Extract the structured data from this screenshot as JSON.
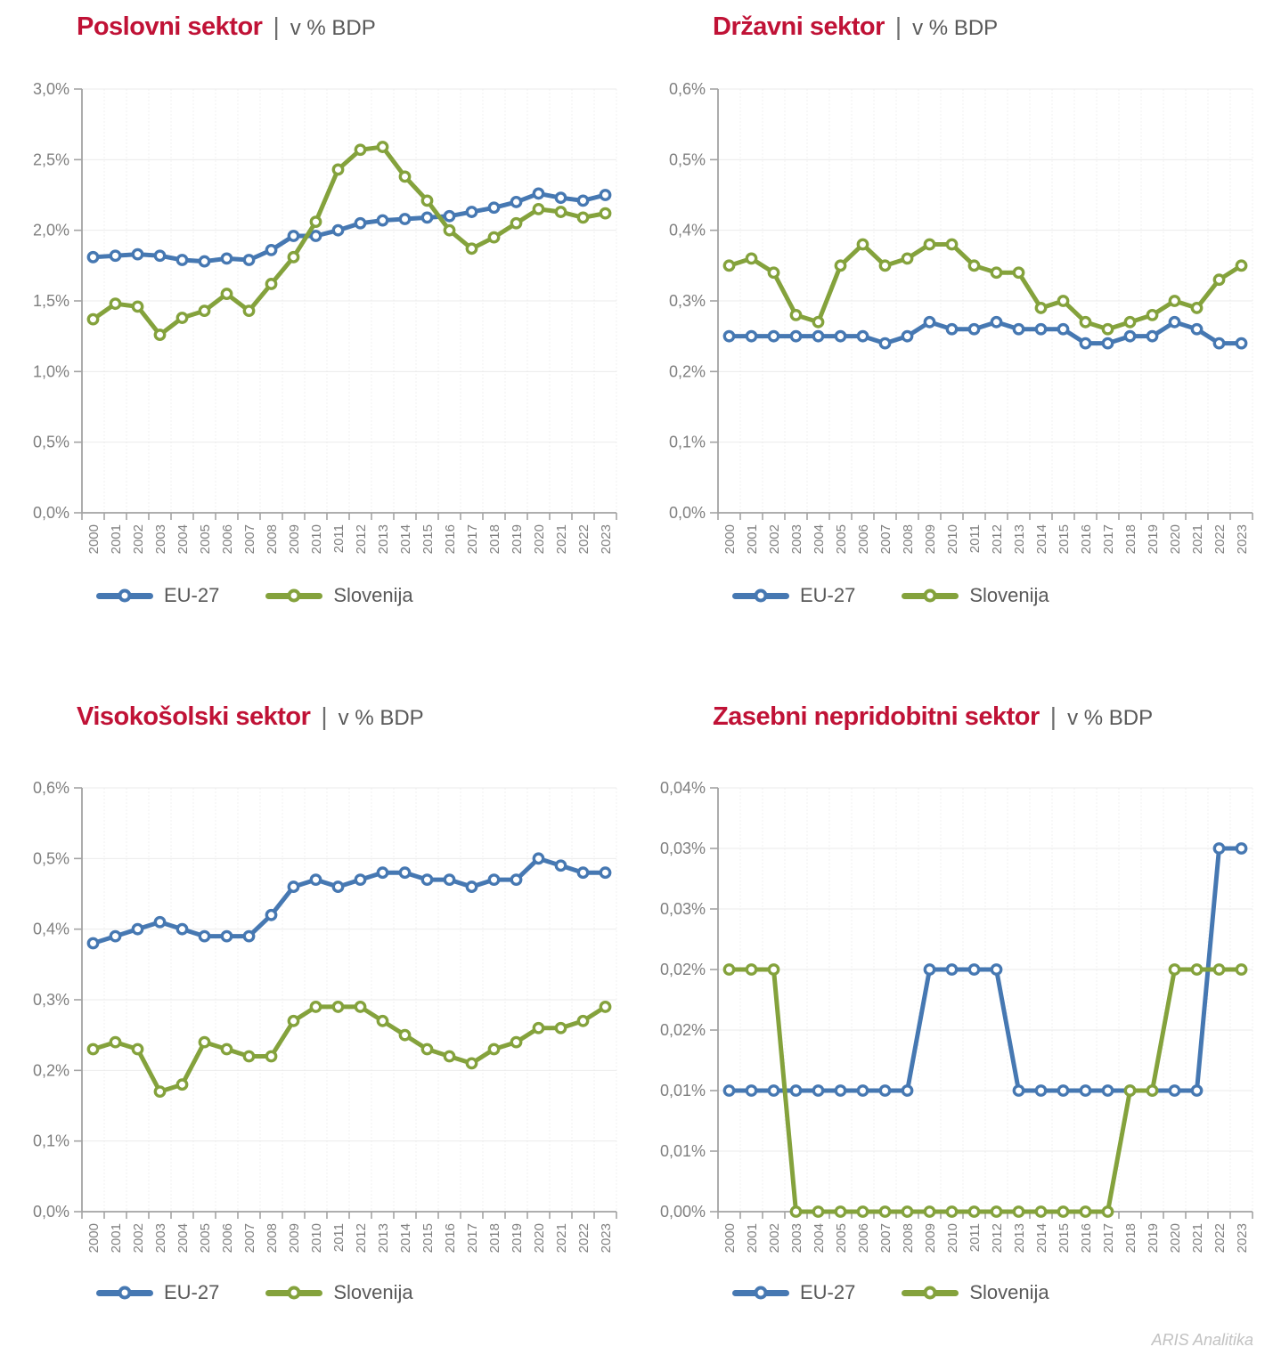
{
  "page": {
    "footer": "ARIS Analitika"
  },
  "colors": {
    "eu27": "#4678B2",
    "slovenija": "#84A23C",
    "title_red": "#C01236",
    "subtitle_gray": "#595959",
    "axis_label_gray": "#7F7F7F"
  },
  "chart_data": [
    {
      "type": "line",
      "title": "Poslovni sektor",
      "separator": "|",
      "subtitle": "v % BDP",
      "x": [
        2000,
        2001,
        2002,
        2003,
        2004,
        2005,
        2006,
        2007,
        2008,
        2009,
        2010,
        2011,
        2012,
        2013,
        2014,
        2015,
        2016,
        2017,
        2018,
        2019,
        2020,
        2021,
        2022,
        2023
      ],
      "series": [
        {
          "name": "EU-27",
          "color": "#4678B2",
          "values": [
            1.81,
            1.82,
            1.83,
            1.82,
            1.79,
            1.78,
            1.8,
            1.79,
            1.86,
            1.96,
            1.96,
            2.0,
            2.05,
            2.07,
            2.08,
            2.09,
            2.1,
            2.13,
            2.16,
            2.2,
            2.26,
            2.23,
            2.21,
            2.25
          ]
        },
        {
          "name": "Slovenija",
          "color": "#84A23C",
          "values": [
            1.37,
            1.48,
            1.46,
            1.26,
            1.38,
            1.43,
            1.55,
            1.43,
            1.62,
            1.81,
            2.06,
            2.43,
            2.57,
            2.59,
            2.38,
            2.21,
            2.0,
            1.87,
            1.95,
            2.05,
            2.15,
            2.13,
            2.09,
            2.12
          ]
        }
      ],
      "ylim": [
        0,
        3.0
      ],
      "ytick_labels": [
        "0,0%",
        "0,5%",
        "1,0%",
        "1,5%",
        "2,0%",
        "2,5%",
        "3,0%"
      ],
      "grid": true,
      "legend_position": "bottom"
    },
    {
      "type": "line",
      "title": "Državni sektor",
      "separator": "|",
      "subtitle": "v % BDP",
      "x": [
        2000,
        2001,
        2002,
        2003,
        2004,
        2005,
        2006,
        2007,
        2008,
        2009,
        2010,
        2011,
        2012,
        2013,
        2014,
        2015,
        2016,
        2017,
        2018,
        2019,
        2020,
        2021,
        2022,
        2023
      ],
      "series": [
        {
          "name": "EU-27",
          "color": "#4678B2",
          "values": [
            0.25,
            0.25,
            0.25,
            0.25,
            0.25,
            0.25,
            0.25,
            0.24,
            0.25,
            0.27,
            0.26,
            0.26,
            0.27,
            0.26,
            0.26,
            0.26,
            0.24,
            0.24,
            0.25,
            0.25,
            0.27,
            0.26,
            0.24,
            0.24
          ]
        },
        {
          "name": "Slovenija",
          "color": "#84A23C",
          "values": [
            0.35,
            0.36,
            0.34,
            0.28,
            0.27,
            0.35,
            0.38,
            0.35,
            0.36,
            0.38,
            0.38,
            0.35,
            0.34,
            0.34,
            0.29,
            0.3,
            0.27,
            0.26,
            0.27,
            0.28,
            0.3,
            0.29,
            0.33,
            0.35
          ]
        }
      ],
      "ylim": [
        0,
        0.6
      ],
      "ytick_labels": [
        "0,0%",
        "0,1%",
        "0,2%",
        "0,3%",
        "0,4%",
        "0,5%",
        "0,6%"
      ],
      "grid": true,
      "legend_position": "bottom"
    },
    {
      "type": "line",
      "title": "Visokošolski sektor",
      "separator": "|",
      "subtitle": "v % BDP",
      "x": [
        2000,
        2001,
        2002,
        2003,
        2004,
        2005,
        2006,
        2007,
        2008,
        2009,
        2010,
        2011,
        2012,
        2013,
        2014,
        2015,
        2016,
        2017,
        2018,
        2019,
        2020,
        2021,
        2022,
        2023
      ],
      "series": [
        {
          "name": "EU-27",
          "color": "#4678B2",
          "values": [
            0.38,
            0.39,
            0.4,
            0.41,
            0.4,
            0.39,
            0.39,
            0.39,
            0.42,
            0.46,
            0.47,
            0.46,
            0.47,
            0.48,
            0.48,
            0.47,
            0.47,
            0.46,
            0.47,
            0.47,
            0.5,
            0.49,
            0.48,
            0.48
          ]
        },
        {
          "name": "Slovenija",
          "color": "#84A23C",
          "values": [
            0.23,
            0.24,
            0.23,
            0.17,
            0.18,
            0.24,
            0.23,
            0.22,
            0.22,
            0.27,
            0.29,
            0.29,
            0.29,
            0.27,
            0.25,
            0.23,
            0.22,
            0.21,
            0.23,
            0.24,
            0.26,
            0.26,
            0.27,
            0.29
          ]
        }
      ],
      "ylim": [
        0,
        0.6
      ],
      "ytick_labels": [
        "0,0%",
        "0,1%",
        "0,2%",
        "0,3%",
        "0,4%",
        "0,5%",
        "0,6%"
      ],
      "grid": true,
      "legend_position": "bottom"
    },
    {
      "type": "line",
      "title": "Zasebni nepridobitni sektor",
      "separator": "|",
      "subtitle": "v % BDP",
      "x": [
        2000,
        2001,
        2002,
        2003,
        2004,
        2005,
        2006,
        2007,
        2008,
        2009,
        2010,
        2011,
        2012,
        2013,
        2014,
        2015,
        2016,
        2017,
        2018,
        2019,
        2020,
        2021,
        2022,
        2023
      ],
      "series": [
        {
          "name": "EU-27",
          "color": "#4678B2",
          "values": [
            0.01,
            0.01,
            0.01,
            0.01,
            0.01,
            0.01,
            0.01,
            0.01,
            0.01,
            0.02,
            0.02,
            0.02,
            0.02,
            0.01,
            0.01,
            0.01,
            0.01,
            0.01,
            0.01,
            0.01,
            0.01,
            0.01,
            0.03,
            0.03
          ]
        },
        {
          "name": "Slovenija",
          "color": "#84A23C",
          "values": [
            0.02,
            0.02,
            0.02,
            0.0,
            0.0,
            0.0,
            0.0,
            0.0,
            0.0,
            0.0,
            0.0,
            0.0,
            0.0,
            0.0,
            0.0,
            0.0,
            0.0,
            0.0,
            0.01,
            0.01,
            0.02,
            0.02,
            0.02,
            0.02
          ]
        }
      ],
      "ylim": [
        0,
        0.035
      ],
      "ytick_labels": [
        "0,00%",
        "0,01%",
        "0,01%",
        "0,02%",
        "0,02%",
        "0,03%",
        "0,03%",
        "0,04%"
      ],
      "grid": true,
      "legend_position": "bottom"
    }
  ]
}
